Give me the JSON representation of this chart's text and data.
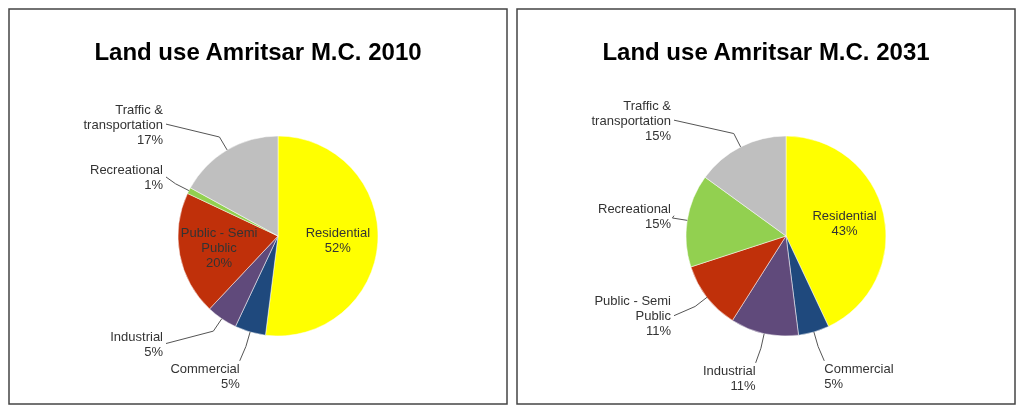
{
  "chart_data": [
    {
      "type": "pie",
      "title": "Land use Amritsar M.C. 2010",
      "categories": [
        "Residential",
        "Commercial",
        "Industrial",
        "Public - Semi Public",
        "Recreational",
        "Traffic & transportation"
      ],
      "values": [
        52,
        5,
        5,
        20,
        1,
        17
      ],
      "value_labels": [
        "52%",
        "5%",
        "5%",
        "20%",
        "1%",
        "17%"
      ],
      "colors": [
        "#ffff00",
        "#1f497d",
        "#604a7b",
        "#c0300a",
        "#92d050",
        "#bfbfbf"
      ]
    },
    {
      "type": "pie",
      "title": "Land use Amritsar M.C. 2031",
      "categories": [
        "Residential",
        "Commercial",
        "Industrial",
        "Public - Semi Public",
        "Recreational",
        "Traffic & transportation"
      ],
      "values": [
        43,
        5,
        11,
        11,
        15,
        15
      ],
      "value_labels": [
        "43%",
        "5%",
        "11%",
        "11%",
        "15%",
        "15%"
      ],
      "colors": [
        "#ffff00",
        "#1f497d",
        "#604a7b",
        "#c0300a",
        "#92d050",
        "#bfbfbf"
      ]
    }
  ]
}
